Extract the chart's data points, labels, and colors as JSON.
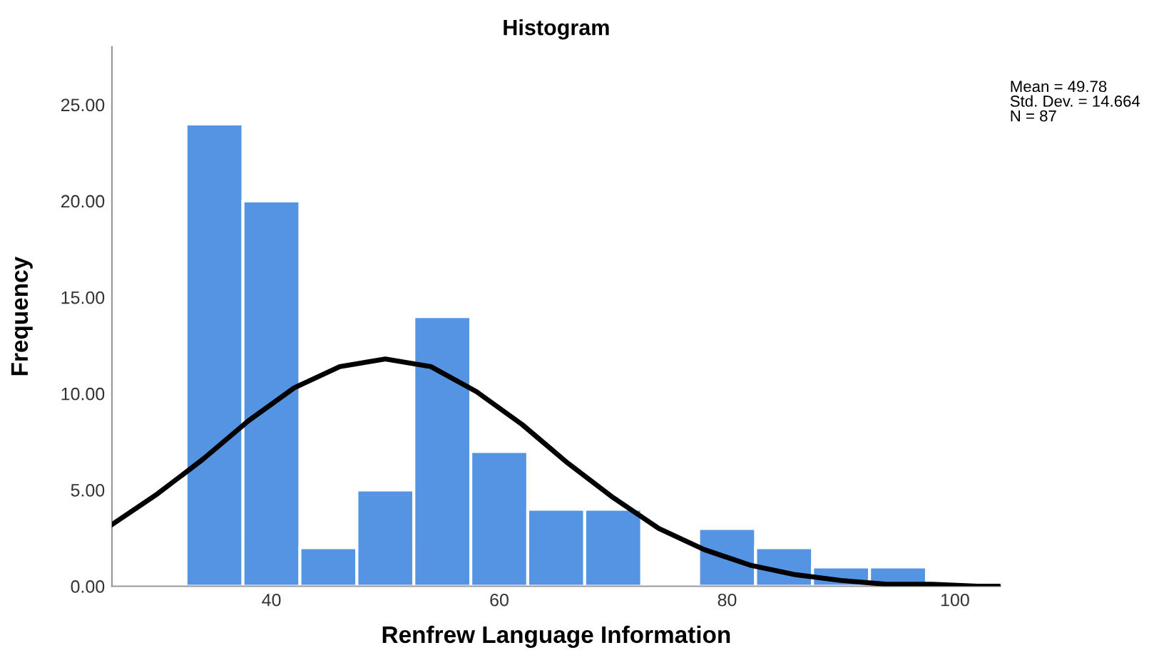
{
  "chart_data": {
    "type": "histogram",
    "title": "Histogram",
    "xlabel": "Renfrew Language Information",
    "ylabel": "Frequency",
    "series": [
      {
        "color": "#5594e3",
        "bins": [
          32.5,
          37.5,
          42.5,
          47.5,
          52.5,
          57.5,
          62.5,
          67.5,
          72.5,
          77.5,
          82.5,
          87.5,
          92.5,
          97.5
        ],
        "values": [
          24,
          20,
          2,
          5,
          14,
          7,
          4,
          4,
          0,
          3,
          2,
          1,
          1
        ]
      },
      {
        "type": "line",
        "color": "#000000",
        "x": [
          26,
          30,
          34,
          38,
          42,
          46,
          50,
          54,
          58,
          62,
          66,
          70,
          74,
          78,
          82,
          86,
          90,
          94,
          98,
          102,
          104
        ],
        "values": [
          3.2,
          4.8,
          6.6,
          8.6,
          10.3,
          11.4,
          11.8,
          11.4,
          10.1,
          8.4,
          6.4,
          4.6,
          3.0,
          1.9,
          1.1,
          0.6,
          0.3,
          0.1,
          0.1,
          0.0,
          0.0
        ]
      }
    ],
    "xlim": [
      26,
      104
    ],
    "xticks": [
      40,
      60,
      80,
      100
    ],
    "ylim": [
      0,
      28
    ],
    "yticks": [
      {
        "value": 0,
        "label": "0.00"
      },
      {
        "value": 5,
        "label": "5.00"
      },
      {
        "value": 10,
        "label": "10.00"
      },
      {
        "value": 15,
        "label": "15.00"
      },
      {
        "value": 20,
        "label": "20.00"
      },
      {
        "value": 25,
        "label": "25.00"
      }
    ],
    "annotations": [
      "Mean = 49.78",
      "Std. Dev. = 14.664",
      "N = 87"
    ],
    "grid": false,
    "legend": false
  }
}
